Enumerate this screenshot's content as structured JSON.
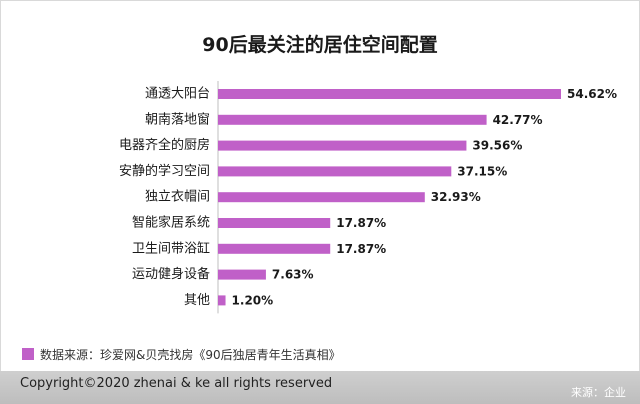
{
  "chart_data": {
    "type": "bar",
    "orientation": "horizontal",
    "title": "90后最关注的居住空间配置",
    "categories": [
      "通透大阳台",
      "朝南落地窗",
      "电器齐全的厨房",
      "安静的学习空间",
      "独立衣帽间",
      "智能家居系统",
      "卫生间带浴缸",
      "运动健身设备",
      "其他"
    ],
    "values": [
      54.62,
      42.77,
      39.56,
      37.15,
      32.93,
      17.87,
      17.87,
      7.63,
      1.2
    ],
    "value_labels": [
      "54.62%",
      "42.77%",
      "39.56%",
      "37.15%",
      "32.93%",
      "17.87%",
      "17.87%",
      "7.63%",
      "1.20%"
    ],
    "xlim": [
      0,
      54.62
    ],
    "grid": false,
    "bar_color": "#c060c8"
  },
  "source_note": "数据来源：珍爱网&贝壳找房《90后独居青年生活真相》",
  "footer": {
    "copyright": "Copyright©2020 zhenai & ke all rights reserved",
    "credit": "来源：企业"
  }
}
